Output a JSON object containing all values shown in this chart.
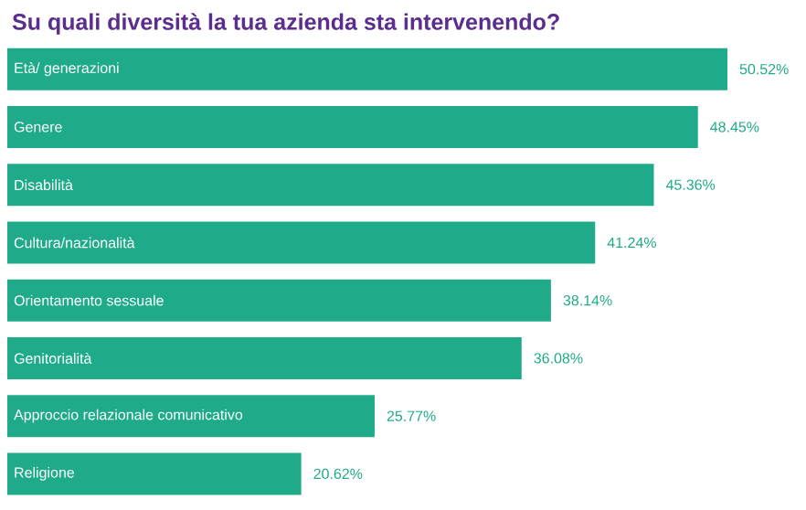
{
  "chart_data": {
    "type": "bar",
    "orientation": "horizontal",
    "title": "Su quali diversità la tua azienda sta intervenendo?",
    "categories": [
      "Età/ generazioni",
      "Genere",
      "Disabilità",
      "Cultura/nazionalità",
      "Orientamento sessuale",
      "Genitorialità",
      "Approccio relazionale comunicativo",
      "Religione"
    ],
    "values": [
      50.52,
      48.45,
      45.36,
      41.24,
      38.14,
      36.08,
      25.77,
      20.62
    ],
    "value_labels": [
      "50.52%",
      "48.45%",
      "45.36%",
      "41.24%",
      "38.14%",
      "36.08%",
      "25.77%",
      "20.62%"
    ],
    "color": "#1fab89"
  }
}
